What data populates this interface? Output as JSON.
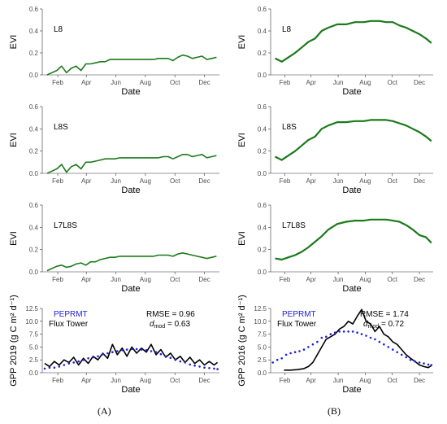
{
  "captions": {
    "left": "(A)",
    "right": "(B)"
  },
  "chart_data": [
    {
      "id": "A1",
      "type": "line",
      "panel_label": "L8",
      "xlabel": "Date",
      "ylabel": "EVI",
      "xticks": [
        "Feb",
        "Apr",
        "Jun",
        "Aug",
        "Oct",
        "Dec"
      ],
      "ylim": [
        0,
        0.6
      ],
      "yticks": [
        "0.0",
        "0.2",
        "0.4",
        "0.6"
      ],
      "grid": false,
      "line_color": "#1b7a1b",
      "series": [
        {
          "x": [
            10,
            20,
            30,
            40,
            50,
            60,
            70,
            80,
            90,
            100,
            110,
            120,
            130,
            140,
            150,
            160,
            170,
            180,
            190,
            200,
            210,
            220,
            230,
            240,
            250,
            260,
            270,
            280,
            290,
            300,
            310,
            320,
            330,
            340,
            350,
            360
          ],
          "values": [
            0.0,
            0.02,
            0.04,
            0.08,
            0.02,
            0.06,
            0.08,
            0.04,
            0.1,
            0.1,
            0.11,
            0.12,
            0.12,
            0.14,
            0.14,
            0.14,
            0.14,
            0.14,
            0.14,
            0.14,
            0.14,
            0.14,
            0.14,
            0.15,
            0.15,
            0.15,
            0.13,
            0.16,
            0.18,
            0.17,
            0.15,
            0.16,
            0.17,
            0.14,
            0.15,
            0.16
          ]
        }
      ]
    },
    {
      "id": "A2",
      "type": "line",
      "panel_label": "L8S",
      "xlabel": "Date",
      "ylabel": "EVI",
      "xticks": [
        "Feb",
        "Apr",
        "Jun",
        "Aug",
        "Oct",
        "Dec"
      ],
      "ylim": [
        0,
        0.6
      ],
      "yticks": [
        "0.0",
        "0.2",
        "0.4",
        "0.6"
      ],
      "grid": false,
      "line_color": "#1b7a1b",
      "series": [
        {
          "x": [
            10,
            20,
            30,
            40,
            50,
            60,
            70,
            80,
            90,
            100,
            110,
            120,
            130,
            140,
            150,
            160,
            170,
            180,
            190,
            200,
            210,
            220,
            230,
            240,
            250,
            260,
            270,
            280,
            290,
            300,
            310,
            320,
            330,
            340,
            350,
            360
          ],
          "values": [
            0.0,
            0.02,
            0.04,
            0.08,
            0.01,
            0.06,
            0.08,
            0.04,
            0.1,
            0.1,
            0.11,
            0.12,
            0.13,
            0.13,
            0.13,
            0.14,
            0.14,
            0.14,
            0.14,
            0.14,
            0.14,
            0.14,
            0.14,
            0.14,
            0.15,
            0.15,
            0.13,
            0.15,
            0.17,
            0.17,
            0.15,
            0.16,
            0.17,
            0.14,
            0.15,
            0.16
          ]
        }
      ]
    },
    {
      "id": "A3",
      "type": "line",
      "panel_label": "L7L8S",
      "xlabel": "Date",
      "ylabel": "EVI",
      "xticks": [
        "Feb",
        "Apr",
        "Jun",
        "Aug",
        "Oct",
        "Dec"
      ],
      "ylim": [
        0,
        0.6
      ],
      "yticks": [
        "0.0",
        "0.2",
        "0.4",
        "0.6"
      ],
      "grid": false,
      "line_color": "#1b7a1b",
      "series": [
        {
          "x": [
            10,
            20,
            30,
            40,
            50,
            60,
            70,
            80,
            90,
            100,
            110,
            120,
            130,
            140,
            150,
            160,
            170,
            180,
            190,
            200,
            210,
            220,
            230,
            240,
            250,
            260,
            270,
            280,
            290,
            300,
            310,
            320,
            330,
            340,
            350,
            360
          ],
          "values": [
            0.01,
            0.03,
            0.05,
            0.06,
            0.04,
            0.05,
            0.07,
            0.08,
            0.06,
            0.09,
            0.09,
            0.11,
            0.12,
            0.13,
            0.13,
            0.14,
            0.14,
            0.14,
            0.14,
            0.14,
            0.14,
            0.14,
            0.14,
            0.15,
            0.15,
            0.15,
            0.14,
            0.16,
            0.17,
            0.16,
            0.15,
            0.14,
            0.13,
            0.12,
            0.13,
            0.14
          ]
        }
      ]
    },
    {
      "id": "A4",
      "type": "line",
      "xlabel": "Date",
      "ylabel": "GPP 2019 (g C m² d⁻¹)",
      "xticks": [
        "Feb",
        "Apr",
        "Jun",
        "Aug",
        "Oct",
        "Dec"
      ],
      "ylim": [
        0,
        12.5
      ],
      "yticks": [
        "0.0",
        "2.5",
        "5.0",
        "7.5",
        "10.0",
        "12.5"
      ],
      "grid": false,
      "legend": [
        {
          "name": "PEPRMT",
          "color": "#2020dd"
        },
        {
          "name": "Flux Tower",
          "color": "#000000"
        }
      ],
      "stats": {
        "rmse_text": "RMSE = 0.96",
        "dmod_symbol": "d",
        "dmod_subscript": "mod",
        "dmod_value": " = 0.63"
      },
      "series": [
        {
          "name": "Flux Tower",
          "kind": "line",
          "color": "#000000",
          "x": [
            5,
            15,
            25,
            35,
            45,
            55,
            65,
            75,
            85,
            95,
            105,
            115,
            125,
            135,
            145,
            155,
            165,
            175,
            185,
            195,
            205,
            215,
            225,
            235,
            245,
            255,
            265,
            275,
            285,
            295,
            305,
            315,
            325,
            335,
            345,
            355,
            362
          ],
          "values": [
            1.8,
            1.2,
            2.2,
            1.5,
            2.5,
            2.0,
            3.0,
            1.5,
            2.8,
            1.8,
            3.2,
            2.5,
            3.8,
            2.8,
            5.5,
            3.5,
            4.8,
            3.2,
            5.0,
            3.8,
            4.8,
            4.0,
            5.5,
            3.5,
            4.5,
            3.0,
            3.8,
            2.5,
            3.2,
            2.0,
            3.0,
            1.8,
            2.5,
            1.5,
            2.2,
            1.5,
            2.0
          ]
        },
        {
          "name": "PEPRMT",
          "kind": "points",
          "color": "#2020dd",
          "x": [
            5,
            15,
            25,
            35,
            45,
            55,
            65,
            75,
            85,
            95,
            105,
            115,
            125,
            135,
            145,
            155,
            165,
            175,
            185,
            195,
            205,
            215,
            225,
            235,
            245,
            255,
            265,
            275,
            285,
            295,
            305,
            315,
            325,
            335,
            345,
            355,
            362
          ],
          "values": [
            0.8,
            1.0,
            1.0,
            1.2,
            1.5,
            1.8,
            2.0,
            2.2,
            2.5,
            2.8,
            3.0,
            3.2,
            3.6,
            3.8,
            4.0,
            4.2,
            4.4,
            4.5,
            4.6,
            4.6,
            4.5,
            4.4,
            4.2,
            4.0,
            3.6,
            3.2,
            2.9,
            2.5,
            2.2,
            2.0,
            1.6,
            1.4,
            1.2,
            1.0,
            0.9,
            0.8,
            0.7
          ]
        }
      ]
    },
    {
      "id": "B1",
      "type": "line",
      "panel_label": "L8",
      "xlabel": "Date",
      "ylabel": "EVI",
      "xticks": [
        "Feb",
        "Apr",
        "Jun",
        "Aug",
        "Oct",
        "Dec"
      ],
      "ylim": [
        0,
        0.6
      ],
      "yticks": [
        "0.0",
        "0.2",
        "0.4",
        "0.6"
      ],
      "grid": false,
      "line_color": "#1b7a1b",
      "series": [
        {
          "x": [
            10,
            25,
            40,
            55,
            70,
            85,
            100,
            115,
            130,
            150,
            170,
            190,
            210,
            225,
            245,
            260,
            275,
            290,
            305,
            320,
            335,
            350,
            362
          ],
          "values": [
            0.15,
            0.12,
            0.16,
            0.2,
            0.25,
            0.3,
            0.33,
            0.4,
            0.43,
            0.46,
            0.46,
            0.48,
            0.48,
            0.49,
            0.49,
            0.48,
            0.48,
            0.45,
            0.43,
            0.4,
            0.37,
            0.33,
            0.29
          ]
        }
      ]
    },
    {
      "id": "B2",
      "type": "line",
      "panel_label": "L8S",
      "xlabel": "Date",
      "ylabel": "EVI",
      "xticks": [
        "Feb",
        "Apr",
        "Jun",
        "Aug",
        "Oct",
        "Dec"
      ],
      "ylim": [
        0,
        0.6
      ],
      "yticks": [
        "0.0",
        "0.2",
        "0.4",
        "0.6"
      ],
      "grid": false,
      "line_color": "#1b7a1b",
      "series": [
        {
          "x": [
            10,
            25,
            40,
            55,
            70,
            85,
            100,
            115,
            130,
            150,
            170,
            190,
            210,
            225,
            245,
            260,
            275,
            290,
            305,
            320,
            335,
            350,
            362
          ],
          "values": [
            0.15,
            0.12,
            0.16,
            0.2,
            0.25,
            0.3,
            0.33,
            0.4,
            0.43,
            0.46,
            0.46,
            0.47,
            0.47,
            0.48,
            0.48,
            0.48,
            0.47,
            0.45,
            0.43,
            0.4,
            0.37,
            0.33,
            0.29
          ]
        }
      ]
    },
    {
      "id": "B3",
      "type": "line",
      "panel_label": "L7L8S",
      "xlabel": "Date",
      "ylabel": "EVI",
      "xticks": [
        "Feb",
        "Apr",
        "Jun",
        "Aug",
        "Oct",
        "Dec"
      ],
      "ylim": [
        0,
        0.6
      ],
      "yticks": [
        "0.0",
        "0.2",
        "0.4",
        "0.6"
      ],
      "grid": false,
      "line_color": "#1b7a1b",
      "series": [
        {
          "x": [
            10,
            25,
            40,
            55,
            70,
            85,
            100,
            115,
            130,
            150,
            170,
            190,
            210,
            225,
            245,
            260,
            275,
            290,
            305,
            320,
            335,
            350,
            362
          ],
          "values": [
            0.12,
            0.11,
            0.13,
            0.15,
            0.18,
            0.22,
            0.27,
            0.32,
            0.38,
            0.43,
            0.45,
            0.46,
            0.46,
            0.47,
            0.47,
            0.47,
            0.46,
            0.45,
            0.42,
            0.38,
            0.33,
            0.31,
            0.26
          ]
        }
      ]
    },
    {
      "id": "B4",
      "type": "line",
      "xlabel": "Date",
      "ylabel": "GPP 2016 (g C m² d⁻¹)",
      "xticks": [
        "Feb",
        "Apr",
        "Jun",
        "Aug",
        "Oct",
        "Dec"
      ],
      "ylim": [
        0,
        12.5
      ],
      "yticks": [
        "0.0",
        "2.5",
        "5.0",
        "7.5",
        "10.0",
        "12.5"
      ],
      "grid": false,
      "legend": [
        {
          "name": "PEPRMT",
          "color": "#2020dd"
        },
        {
          "name": "Flux Tower",
          "color": "#000000"
        }
      ],
      "stats": {
        "rmse_text": "RMSE = 1.74",
        "dmod_symbol": "d",
        "dmod_subscript": "mod",
        "dmod_value": " = 0.72"
      },
      "series": [
        {
          "name": "Flux Tower",
          "kind": "line",
          "color": "#000000",
          "x": [
            30,
            45,
            60,
            75,
            85,
            95,
            105,
            115,
            125,
            135,
            145,
            155,
            165,
            175,
            185,
            195,
            205,
            215,
            225,
            235,
            245,
            255,
            265,
            275,
            285,
            295,
            305,
            315,
            325,
            335,
            345,
            355,
            362
          ],
          "values": [
            0.5,
            0.5,
            0.6,
            0.8,
            1.2,
            2.0,
            3.5,
            5.0,
            6.5,
            7.0,
            7.5,
            8.5,
            9.0,
            10.0,
            9.5,
            11.0,
            12.3,
            10.0,
            9.5,
            8.0,
            9.0,
            7.5,
            7.0,
            6.0,
            5.5,
            4.5,
            3.5,
            2.8,
            2.2,
            1.5,
            1.2,
            1.0,
            1.4
          ]
        },
        {
          "name": "PEPRMT",
          "kind": "points",
          "color": "#2020dd",
          "x": [
            5,
            15,
            25,
            35,
            45,
            55,
            65,
            75,
            85,
            95,
            105,
            115,
            125,
            135,
            145,
            155,
            165,
            175,
            185,
            195,
            205,
            215,
            225,
            235,
            245,
            255,
            265,
            275,
            285,
            295,
            305,
            315,
            325,
            335,
            345,
            355,
            362
          ],
          "values": [
            2.0,
            2.5,
            2.8,
            3.5,
            3.8,
            4.0,
            4.2,
            4.5,
            5.0,
            5.5,
            6.0,
            6.8,
            7.0,
            7.5,
            7.8,
            8.0,
            8.0,
            8.0,
            8.0,
            7.8,
            7.5,
            7.2,
            6.8,
            6.5,
            6.0,
            5.5,
            5.0,
            4.5,
            4.0,
            3.5,
            3.0,
            2.5,
            2.2,
            2.0,
            1.8,
            1.6,
            1.5
          ]
        }
      ]
    }
  ]
}
